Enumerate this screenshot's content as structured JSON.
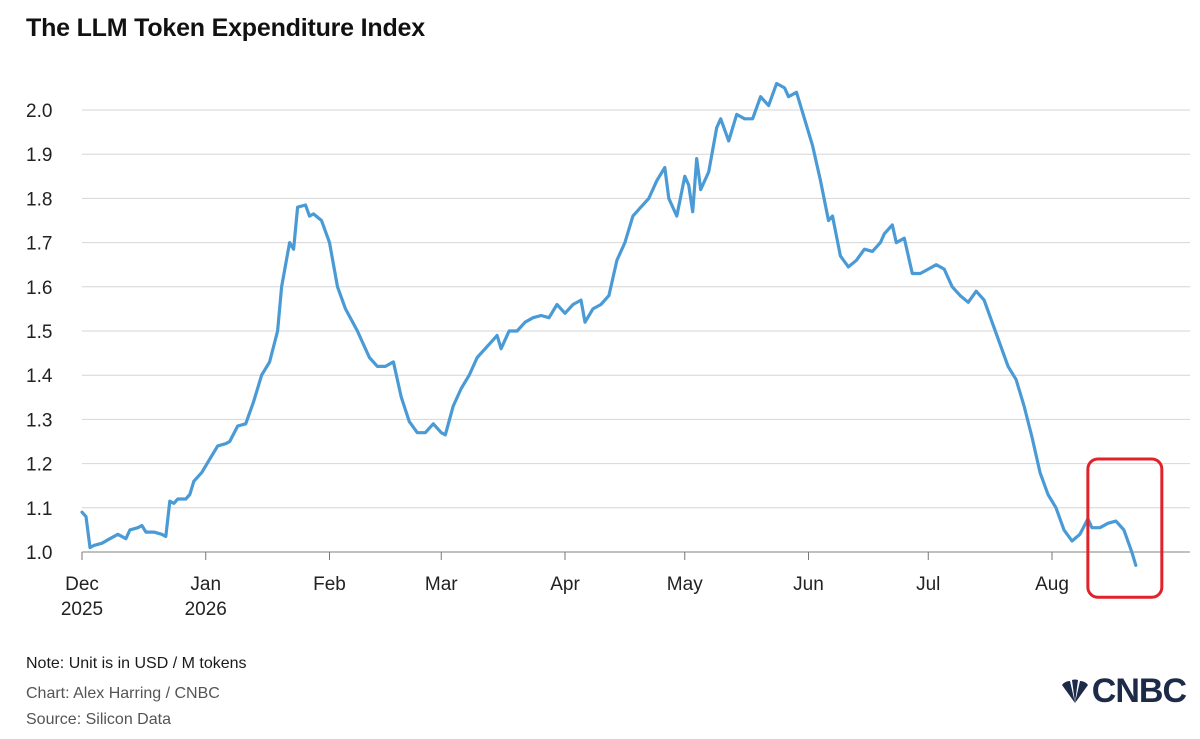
{
  "title": "The LLM Token Expenditure Index",
  "note": "Note: Unit is in USD / M tokens",
  "credit": "Chart: Alex Harring / CNBC",
  "source": "Source: Silicon Data",
  "logo_text": "CNBC",
  "colors": {
    "line": "#4a9ad6",
    "grid": "#d6d6d6",
    "highlight": "#e0222a",
    "logo": "#1d2b48"
  },
  "chart_data": {
    "type": "line",
    "title": "The LLM Token Expenditure Index",
    "xlabel": "",
    "ylabel": "",
    "ylim": [
      1.0,
      2.05
    ],
    "yticks": [
      "1.0",
      "1.1",
      "1.2",
      "1.3",
      "1.4",
      "1.5",
      "1.6",
      "1.7",
      "1.8",
      "1.9",
      "2.0"
    ],
    "xticks": [
      {
        "label": "Dec",
        "sub": "2025",
        "date": "2025-12-01"
      },
      {
        "label": "Jan",
        "sub": "2026",
        "date": "2026-01-01"
      },
      {
        "label": "Feb",
        "sub": "",
        "date": "2026-02-01"
      },
      {
        "label": "Mar",
        "sub": "",
        "date": "2026-03-01"
      },
      {
        "label": "Apr",
        "sub": "",
        "date": "2026-04-01"
      },
      {
        "label": "May",
        "sub": "",
        "date": "2026-05-01"
      },
      {
        "label": "Jun",
        "sub": "",
        "date": "2026-06-01"
      },
      {
        "label": "Jul",
        "sub": "",
        "date": "2026-07-01"
      },
      {
        "label": "Aug",
        "sub": "",
        "date": "2026-08-01"
      }
    ],
    "grid": true,
    "highlight_last_points": true,
    "series": [
      {
        "points": [
          [
            "2025-12-01",
            1.09
          ],
          [
            "2025-12-02",
            1.08
          ],
          [
            "2025-12-03",
            1.01
          ],
          [
            "2025-12-04",
            1.015
          ],
          [
            "2025-12-06",
            1.02
          ],
          [
            "2025-12-08",
            1.03
          ],
          [
            "2025-12-10",
            1.04
          ],
          [
            "2025-12-12",
            1.03
          ],
          [
            "2025-12-13",
            1.05
          ],
          [
            "2025-12-15",
            1.055
          ],
          [
            "2025-12-16",
            1.06
          ],
          [
            "2025-12-17",
            1.045
          ],
          [
            "2025-12-19",
            1.045
          ],
          [
            "2025-12-21",
            1.04
          ],
          [
            "2025-12-22",
            1.035
          ],
          [
            "2025-12-23",
            1.115
          ],
          [
            "2025-12-24",
            1.11
          ],
          [
            "2025-12-25",
            1.12
          ],
          [
            "2025-12-27",
            1.12
          ],
          [
            "2025-12-28",
            1.13
          ],
          [
            "2025-12-29",
            1.16
          ],
          [
            "2025-12-31",
            1.18
          ],
          [
            "2026-01-02",
            1.21
          ],
          [
            "2026-01-04",
            1.24
          ],
          [
            "2026-01-06",
            1.245
          ],
          [
            "2026-01-07",
            1.25
          ],
          [
            "2026-01-09",
            1.285
          ],
          [
            "2026-01-11",
            1.29
          ],
          [
            "2026-01-13",
            1.34
          ],
          [
            "2026-01-15",
            1.4
          ],
          [
            "2026-01-17",
            1.43
          ],
          [
            "2026-01-19",
            1.5
          ],
          [
            "2026-01-20",
            1.6
          ],
          [
            "2026-01-21",
            1.65
          ],
          [
            "2026-01-22",
            1.7
          ],
          [
            "2026-01-23",
            1.685
          ],
          [
            "2026-01-24",
            1.78
          ],
          [
            "2026-01-26",
            1.785
          ],
          [
            "2026-01-27",
            1.76
          ],
          [
            "2026-01-28",
            1.765
          ],
          [
            "2026-01-30",
            1.75
          ],
          [
            "2026-02-01",
            1.7
          ],
          [
            "2026-02-03",
            1.6
          ],
          [
            "2026-02-05",
            1.55
          ],
          [
            "2026-02-08",
            1.5
          ],
          [
            "2026-02-11",
            1.44
          ],
          [
            "2026-02-13",
            1.42
          ],
          [
            "2026-02-15",
            1.42
          ],
          [
            "2026-02-17",
            1.43
          ],
          [
            "2026-02-19",
            1.35
          ],
          [
            "2026-02-21",
            1.295
          ],
          [
            "2026-02-23",
            1.27
          ],
          [
            "2026-02-25",
            1.27
          ],
          [
            "2026-02-27",
            1.29
          ],
          [
            "2026-03-01",
            1.27
          ],
          [
            "2026-03-02",
            1.265
          ],
          [
            "2026-03-04",
            1.33
          ],
          [
            "2026-03-06",
            1.37
          ],
          [
            "2026-03-08",
            1.4
          ],
          [
            "2026-03-10",
            1.44
          ],
          [
            "2026-03-12",
            1.46
          ],
          [
            "2026-03-14",
            1.48
          ],
          [
            "2026-03-15",
            1.49
          ],
          [
            "2026-03-16",
            1.46
          ],
          [
            "2026-03-18",
            1.5
          ],
          [
            "2026-03-20",
            1.5
          ],
          [
            "2026-03-22",
            1.52
          ],
          [
            "2026-03-24",
            1.53
          ],
          [
            "2026-03-26",
            1.535
          ],
          [
            "2026-03-28",
            1.53
          ],
          [
            "2026-03-30",
            1.56
          ],
          [
            "2026-04-01",
            1.54
          ],
          [
            "2026-04-03",
            1.56
          ],
          [
            "2026-04-05",
            1.57
          ],
          [
            "2026-04-06",
            1.52
          ],
          [
            "2026-04-08",
            1.55
          ],
          [
            "2026-04-10",
            1.56
          ],
          [
            "2026-04-12",
            1.58
          ],
          [
            "2026-04-13",
            1.62
          ],
          [
            "2026-04-14",
            1.66
          ],
          [
            "2026-04-16",
            1.7
          ],
          [
            "2026-04-18",
            1.76
          ],
          [
            "2026-04-20",
            1.78
          ],
          [
            "2026-04-22",
            1.8
          ],
          [
            "2026-04-24",
            1.84
          ],
          [
            "2026-04-26",
            1.87
          ],
          [
            "2026-04-27",
            1.8
          ],
          [
            "2026-04-29",
            1.76
          ],
          [
            "2026-05-01",
            1.85
          ],
          [
            "2026-05-02",
            1.83
          ],
          [
            "2026-05-03",
            1.77
          ],
          [
            "2026-05-04",
            1.89
          ],
          [
            "2026-05-05",
            1.82
          ],
          [
            "2026-05-07",
            1.86
          ],
          [
            "2026-05-09",
            1.96
          ],
          [
            "2026-05-10",
            1.98
          ],
          [
            "2026-05-12",
            1.93
          ],
          [
            "2026-05-14",
            1.99
          ],
          [
            "2026-05-16",
            1.98
          ],
          [
            "2026-05-18",
            1.98
          ],
          [
            "2026-05-20",
            2.03
          ],
          [
            "2026-05-22",
            2.01
          ],
          [
            "2026-05-24",
            2.06
          ],
          [
            "2026-05-26",
            2.05
          ],
          [
            "2026-05-27",
            2.03
          ],
          [
            "2026-05-29",
            2.04
          ],
          [
            "2026-05-31",
            1.98
          ],
          [
            "2026-06-02",
            1.92
          ],
          [
            "2026-06-04",
            1.84
          ],
          [
            "2026-06-06",
            1.75
          ],
          [
            "2026-06-07",
            1.76
          ],
          [
            "2026-06-09",
            1.67
          ],
          [
            "2026-06-11",
            1.645
          ],
          [
            "2026-06-13",
            1.66
          ],
          [
            "2026-06-15",
            1.685
          ],
          [
            "2026-06-17",
            1.68
          ],
          [
            "2026-06-19",
            1.7
          ],
          [
            "2026-06-20",
            1.72
          ],
          [
            "2026-06-22",
            1.74
          ],
          [
            "2026-06-23",
            1.7
          ],
          [
            "2026-06-25",
            1.71
          ],
          [
            "2026-06-27",
            1.63
          ],
          [
            "2026-06-29",
            1.63
          ],
          [
            "2026-07-01",
            1.64
          ],
          [
            "2026-07-03",
            1.65
          ],
          [
            "2026-07-05",
            1.64
          ],
          [
            "2026-07-07",
            1.6
          ],
          [
            "2026-07-09",
            1.58
          ],
          [
            "2026-07-11",
            1.565
          ],
          [
            "2026-07-13",
            1.59
          ],
          [
            "2026-07-15",
            1.57
          ],
          [
            "2026-07-17",
            1.52
          ],
          [
            "2026-07-19",
            1.47
          ],
          [
            "2026-07-21",
            1.42
          ],
          [
            "2026-07-23",
            1.39
          ],
          [
            "2026-07-25",
            1.33
          ],
          [
            "2026-07-27",
            1.26
          ],
          [
            "2026-07-29",
            1.18
          ],
          [
            "2026-07-31",
            1.13
          ],
          [
            "2026-08-02",
            1.1
          ],
          [
            "2026-08-04",
            1.05
          ],
          [
            "2026-08-06",
            1.025
          ],
          [
            "2026-08-08",
            1.04
          ],
          [
            "2026-08-10",
            1.075
          ],
          [
            "2026-08-11",
            1.055
          ],
          [
            "2026-08-13",
            1.055
          ],
          [
            "2026-08-15",
            1.065
          ],
          [
            "2026-08-17",
            1.07
          ],
          [
            "2026-08-18",
            1.06
          ],
          [
            "2026-08-19",
            1.05
          ],
          [
            "2026-08-21",
            1.0
          ],
          [
            "2026-08-22",
            0.97
          ]
        ]
      }
    ]
  }
}
